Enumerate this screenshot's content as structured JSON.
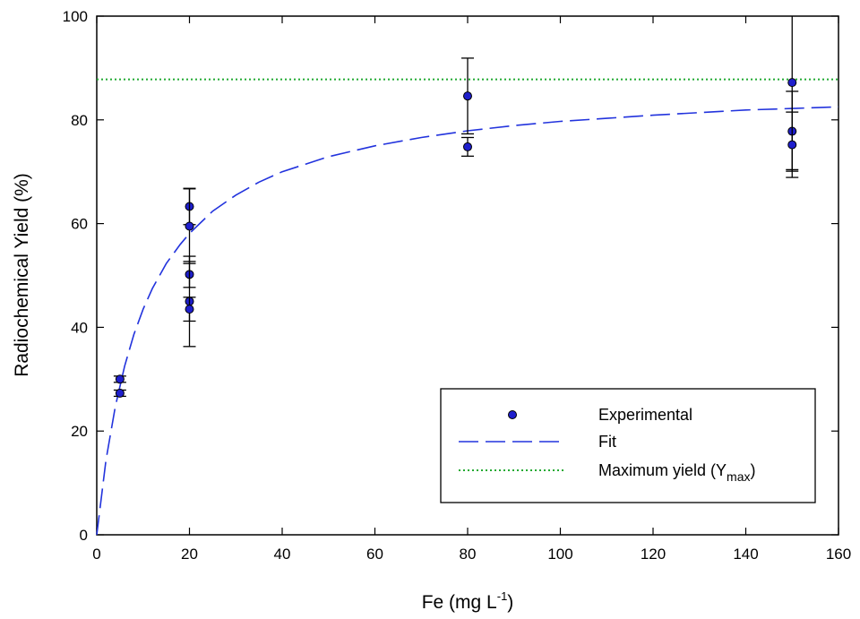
{
  "chart_data": {
    "type": "scatter",
    "xlabel": "Fe (mg L",
    "xlabel_sup": "-1",
    "xlabel_suffix": ")",
    "ylabel": "Radiochemical Yield (%)",
    "xlim": [
      0,
      160
    ],
    "ylim": [
      0,
      100
    ],
    "x_ticks": [
      0,
      20,
      40,
      60,
      80,
      100,
      120,
      140,
      160
    ],
    "y_ticks": [
      0,
      20,
      40,
      60,
      80,
      100
    ],
    "grid": false,
    "legend_position": "bottom-right",
    "series": [
      {
        "name": "Experimental",
        "kind": "scatter",
        "color": "#1f1fcc",
        "points": [
          {
            "x": 5,
            "y": 30.0,
            "err": 0.6
          },
          {
            "x": 5,
            "y": 27.3,
            "err": 0.6
          },
          {
            "x": 20,
            "y": 63.3,
            "err": 3.5
          },
          {
            "x": 20,
            "y": 59.5,
            "err": 7.2
          },
          {
            "x": 20,
            "y": 50.2,
            "err": 2.5
          },
          {
            "x": 20,
            "y": 45.0,
            "err": 8.7
          },
          {
            "x": 20,
            "y": 43.5,
            "err": 2.3
          },
          {
            "x": 80,
            "y": 84.6,
            "err": 7.3
          },
          {
            "x": 80,
            "y": 74.8,
            "err": 1.8
          },
          {
            "x": 150,
            "y": 87.2,
            "err": 16.8
          },
          {
            "x": 150,
            "y": 77.8,
            "err": 7.7
          },
          {
            "x": 150,
            "y": 75.2,
            "err": 6.3
          }
        ]
      },
      {
        "name": "Fit",
        "kind": "line",
        "style": "dashed",
        "color": "#2233dd",
        "ymax": 87.8,
        "k": 10.2,
        "x": [
          0,
          2,
          4,
          6,
          8,
          10,
          12,
          15,
          18,
          20,
          25,
          30,
          35,
          40,
          50,
          60,
          70,
          80,
          90,
          100,
          110,
          120,
          130,
          140,
          150,
          160
        ],
        "y": [
          0,
          14.4,
          24.7,
          32.5,
          38.6,
          43.5,
          47.5,
          52.3,
          56.0,
          58.1,
          62.4,
          65.5,
          68.0,
          70.0,
          72.9,
          75.0,
          76.6,
          77.9,
          78.9,
          79.7,
          80.3,
          80.9,
          81.4,
          81.9,
          82.2,
          82.5
        ]
      },
      {
        "name": "Maximum yield (Y",
        "name_sub": "max",
        "name_suffix": ")",
        "kind": "hline",
        "style": "dotted",
        "color": "#22aa33",
        "value": 87.8
      }
    ]
  }
}
